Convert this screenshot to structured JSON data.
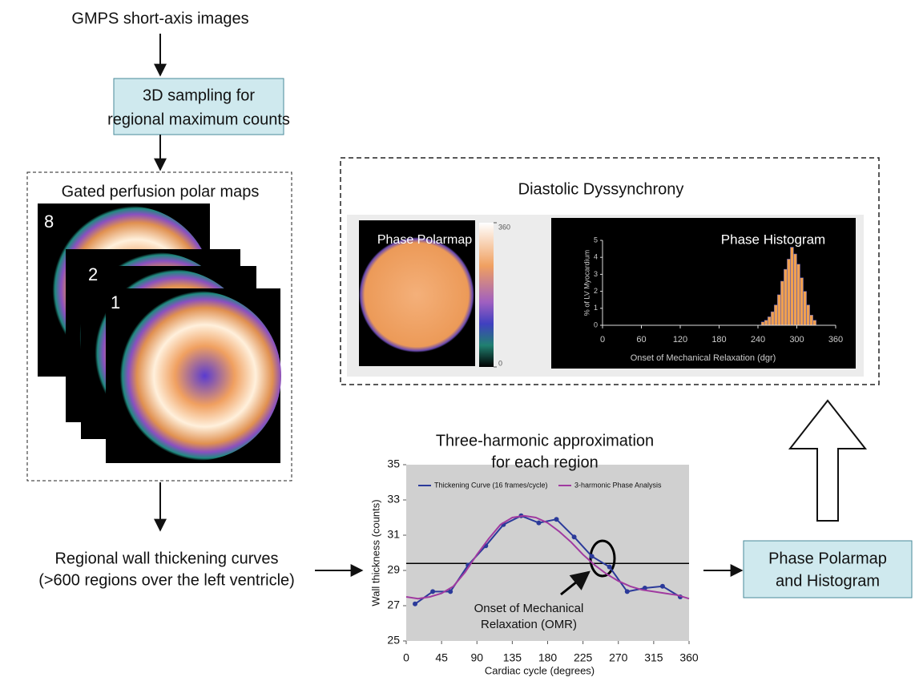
{
  "top_label": "GMPS short-axis images",
  "sampling_box": [
    "3D sampling for",
    "regional maximum counts"
  ],
  "polar_maps": {
    "title": "Gated perfusion polar maps",
    "frames": [
      "8",
      "2",
      "1"
    ]
  },
  "thickening_label": [
    "Regional wall thickening curves",
    "(>600 regions over the left ventricle)"
  ],
  "harmonic_label": [
    "Three-harmonic approximation",
    "for each region"
  ],
  "output_box": [
    "Phase Polarmap",
    "and Histogram"
  ],
  "dyssynchrony": {
    "title": "Diastolic Dyssynchrony",
    "polarmap_label": "Phase Polarmap",
    "colorbar": {
      "lim": [
        0,
        360
      ],
      "ticks": [
        0,
        360
      ]
    }
  },
  "chart_data": [
    {
      "type": "histogram",
      "title": "Phase Histogram",
      "y_label": "% of LV Myocardium",
      "x_label": "Onset of Mechanical Relaxation (dgr)",
      "bins": [
        245,
        250,
        255,
        260,
        265,
        270,
        275,
        280,
        285,
        290,
        295,
        300,
        305,
        310,
        315,
        320,
        325,
        330
      ],
      "values": [
        0.2,
        0.3,
        0.5,
        0.8,
        1.2,
        1.8,
        2.6,
        3.3,
        3.9,
        4.6,
        4.2,
        3.6,
        2.8,
        2.0,
        1.2,
        0.6,
        0.3
      ],
      "color": "#f0a050",
      "xlim": [
        0,
        360
      ],
      "xticks": [
        0,
        60,
        120,
        180,
        240,
        300,
        360
      ],
      "ylim": [
        0,
        5
      ],
      "yticks": [
        0,
        1,
        2,
        3,
        4,
        5
      ]
    },
    {
      "type": "line",
      "y_label": "Wall thickness (counts)",
      "x_label": "Cardiac cycle (degrees)",
      "series": [
        {
          "name": "Thickening Curve (16 frames/cycle)",
          "color": "#2b3a9a",
          "markers": true,
          "x": [
            11.25,
            33.75,
            56.25,
            78.75,
            101.25,
            123.75,
            146.25,
            168.75,
            191.25,
            213.75,
            236.25,
            258.75,
            281.25,
            303.75,
            326.25,
            348.75
          ],
          "values": [
            27.1,
            27.8,
            27.8,
            29.3,
            30.4,
            31.6,
            32.1,
            31.7,
            31.9,
            30.9,
            29.8,
            29.2,
            27.8,
            28.0,
            28.1,
            27.5
          ]
        },
        {
          "name": "3-harmonic Phase Analysis",
          "color": "#a03aa0",
          "markers": false,
          "x": [
            0,
            15,
            30,
            45,
            60,
            75,
            90,
            105,
            120,
            135,
            150,
            165,
            180,
            195,
            210,
            225,
            240,
            255,
            270,
            285,
            300,
            315,
            330,
            345,
            360
          ],
          "values": [
            27.5,
            27.4,
            27.5,
            27.7,
            28.1,
            28.9,
            29.9,
            30.8,
            31.6,
            32.0,
            32.1,
            32.0,
            31.7,
            31.2,
            30.6,
            29.9,
            29.3,
            28.8,
            28.4,
            28.1,
            27.9,
            27.8,
            27.7,
            27.6,
            27.4
          ]
        }
      ],
      "xlim": [
        0,
        360
      ],
      "xticks": [
        0,
        45,
        90,
        135,
        180,
        225,
        270,
        315,
        360
      ],
      "ylim": [
        25,
        35
      ],
      "yticks": [
        25,
        27,
        29,
        31,
        33,
        35
      ],
      "reference_line": 29.4,
      "annotation": [
        "Onset of Mechanical",
        "Relaxation (OMR)"
      ]
    }
  ]
}
